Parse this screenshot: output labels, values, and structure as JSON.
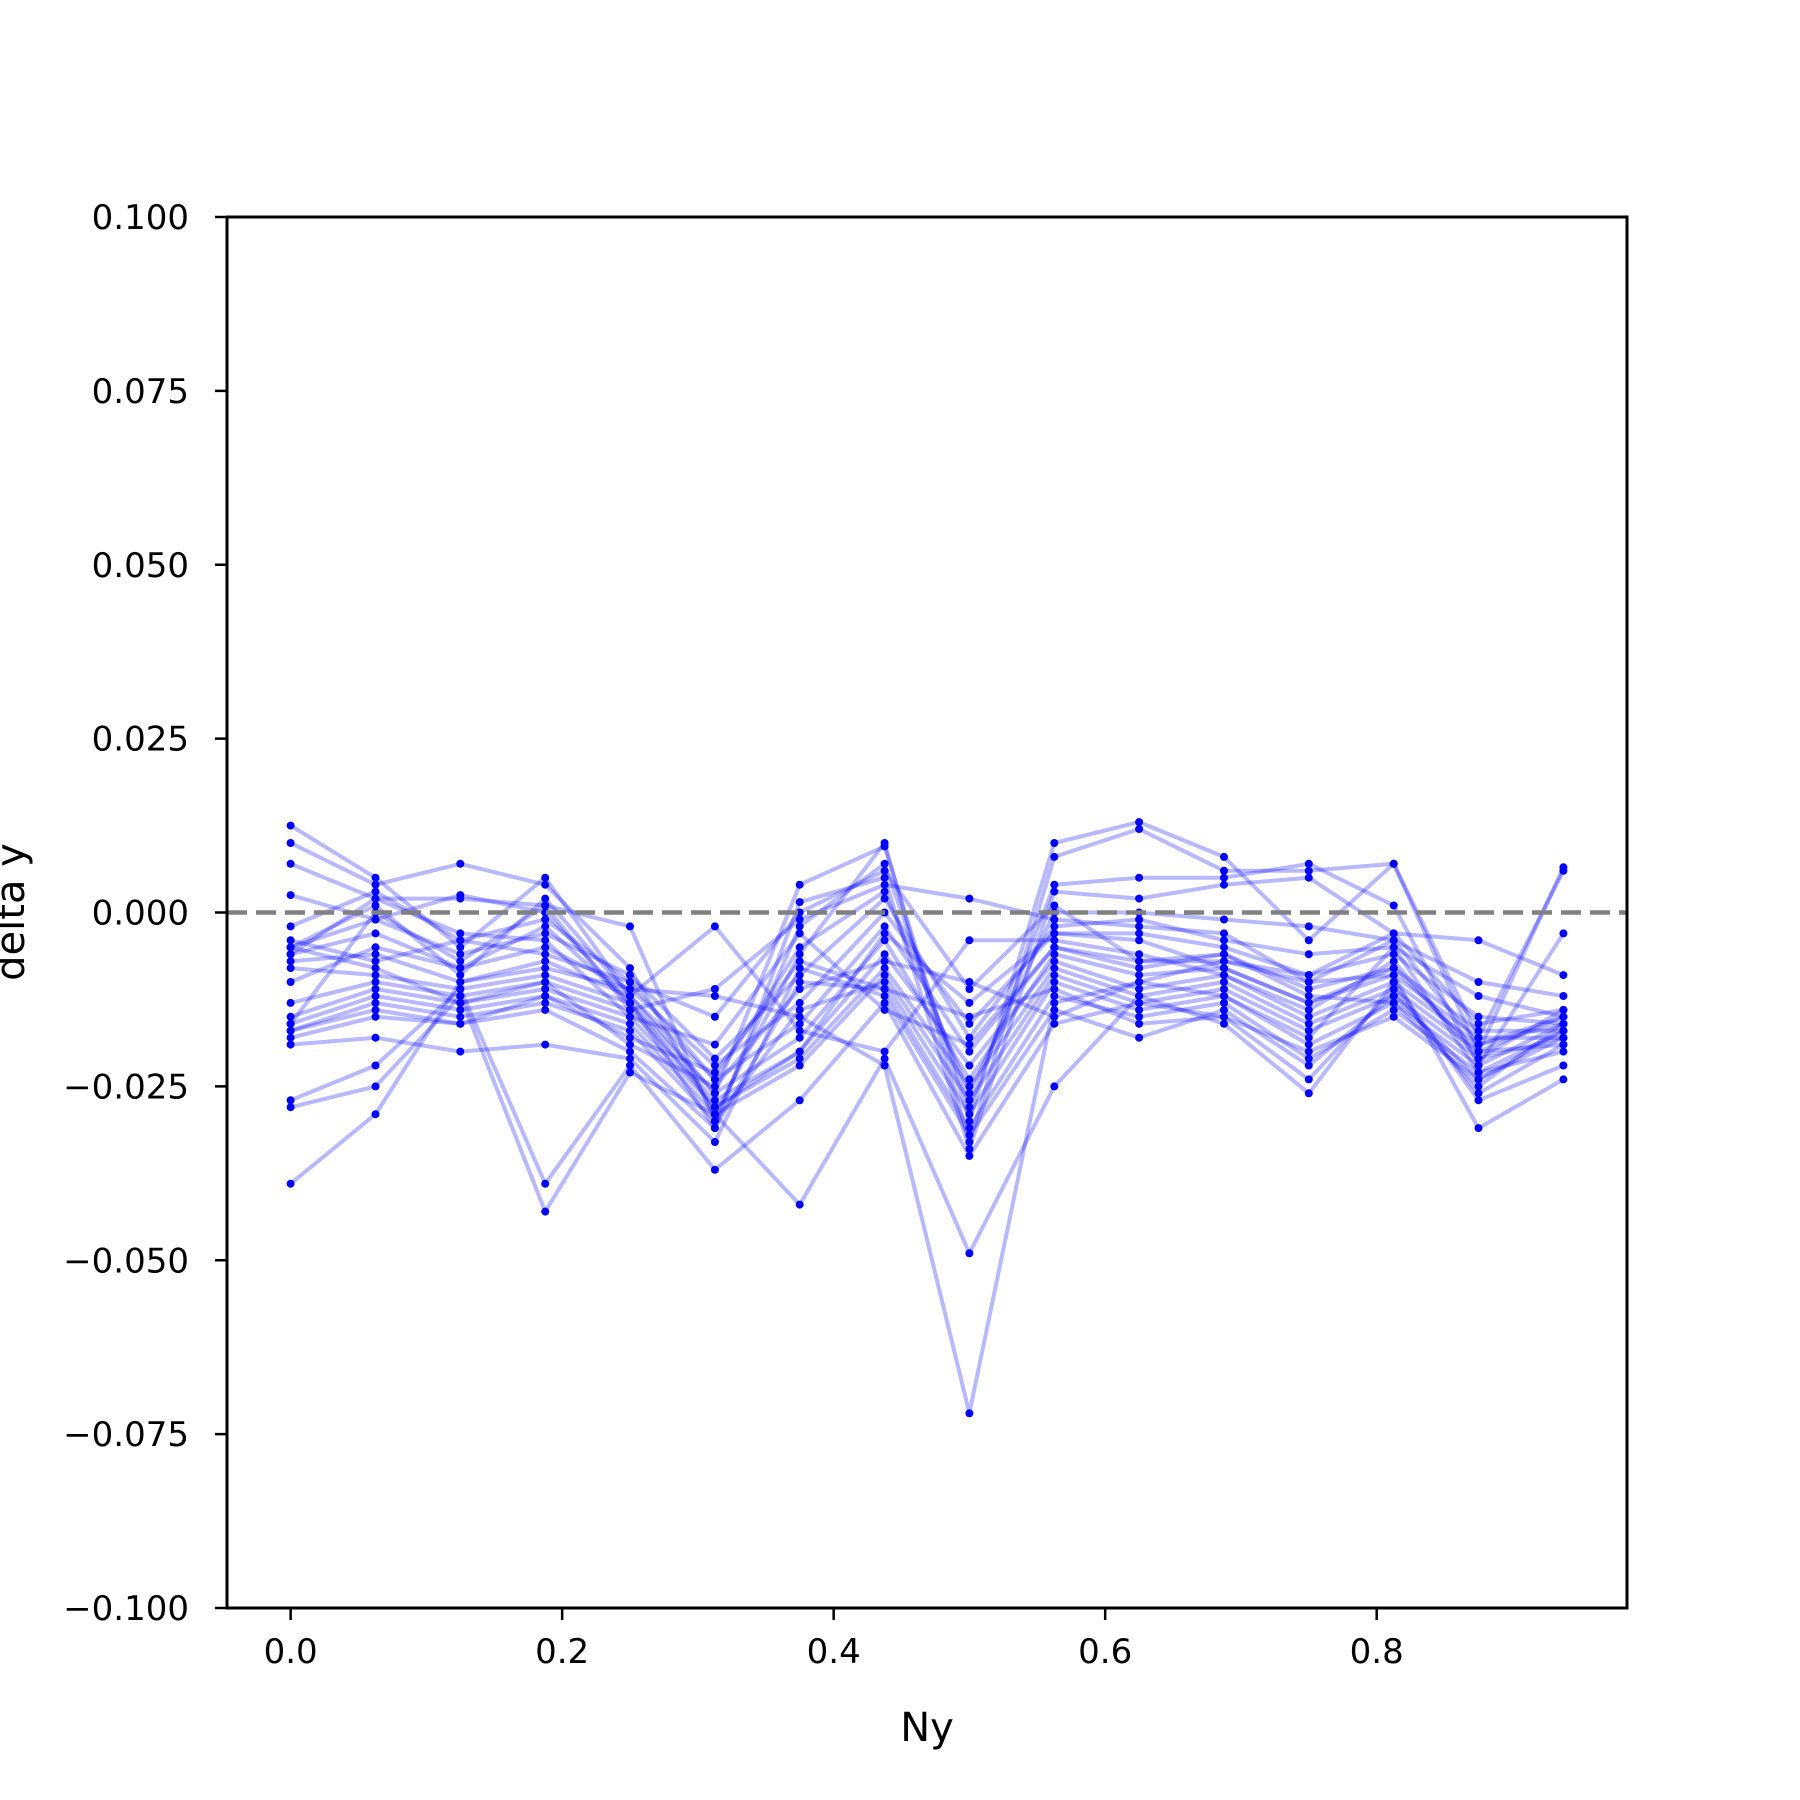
{
  "chart_data": {
    "type": "line",
    "xlabel": "Ny",
    "ylabel": "delta y",
    "xlim": [
      -0.046875,
      0.984375
    ],
    "ylim": [
      -0.1,
      0.1
    ],
    "xticks": [
      0.0,
      0.2,
      0.4,
      0.6,
      0.8
    ],
    "xtick_labels": [
      "0.0",
      "0.2",
      "0.4",
      "0.6",
      "0.8"
    ],
    "yticks": [
      -0.1,
      -0.075,
      -0.05,
      -0.025,
      0.0,
      0.025,
      0.05,
      0.075,
      0.1
    ],
    "ytick_labels": [
      "−0.100",
      "−0.075",
      "−0.050",
      "−0.025",
      "0.000",
      "0.025",
      "0.050",
      "0.075",
      "0.100"
    ],
    "reference_line": {
      "y": 0.0,
      "style": "dashed",
      "color": "#808080"
    },
    "series_color": "#0000ff",
    "line_alpha": 0.28,
    "grid": false,
    "x": [
      0.0,
      0.0625,
      0.125,
      0.1875,
      0.25,
      0.3125,
      0.375,
      0.4375,
      0.5,
      0.5625,
      0.625,
      0.6875,
      0.75,
      0.8125,
      0.875,
      0.9375
    ],
    "series": [
      {
        "values": [
          0.0125,
          0.005,
          -0.005,
          0.005,
          -0.012,
          -0.026,
          0.004,
          0.0095,
          -0.03,
          0.01,
          0.013,
          0.008,
          -0.004,
          0.007,
          -0.018,
          0.006
        ]
      },
      {
        "values": [
          0.01,
          0.004,
          0.007,
          0.004,
          -0.008,
          -0.029,
          -0.006,
          0.01,
          -0.033,
          0.008,
          0.012,
          0.006,
          0.006,
          0.007,
          -0.02,
          0.0065
        ]
      },
      {
        "values": [
          0.007,
          0.002,
          0.002,
          0.001,
          -0.002,
          -0.03,
          -0.002,
          0.007,
          -0.028,
          0.004,
          0.005,
          0.005,
          0.007,
          0.001,
          -0.022,
          -0.003
        ]
      },
      {
        "values": [
          0.0025,
          -0.001,
          0.0025,
          0.0,
          -0.013,
          -0.031,
          0.0015,
          0.005,
          -0.034,
          0.003,
          0.002,
          0.004,
          0.005,
          -0.003,
          -0.004,
          -0.009
        ]
      },
      {
        "values": [
          -0.002,
          0.003,
          -0.004,
          -0.001,
          -0.01,
          -0.024,
          -0.005,
          0.003,
          -0.026,
          0.0,
          0.0,
          -0.001,
          -0.002,
          -0.004,
          -0.01,
          -0.012
        ]
      },
      {
        "values": [
          -0.005,
          -0.001,
          -0.006,
          -0.003,
          -0.009,
          -0.021,
          -0.009,
          0.002,
          -0.018,
          -0.002,
          -0.001,
          -0.004,
          -0.006,
          -0.005,
          -0.012,
          -0.015
        ]
      },
      {
        "values": [
          -0.006,
          -0.003,
          -0.008,
          -0.005,
          -0.011,
          -0.022,
          -0.013,
          0.0,
          -0.016,
          -0.003,
          -0.003,
          -0.005,
          -0.009,
          -0.006,
          -0.015,
          -0.016
        ]
      },
      {
        "values": [
          -0.007,
          -0.006,
          -0.01,
          -0.007,
          -0.012,
          -0.024,
          -0.016,
          -0.002,
          -0.02,
          -0.005,
          -0.007,
          -0.006,
          -0.011,
          -0.008,
          -0.017,
          -0.017
        ]
      },
      {
        "values": [
          -0.008,
          -0.009,
          -0.011,
          -0.009,
          -0.013,
          -0.026,
          -0.018,
          -0.004,
          -0.024,
          -0.006,
          -0.009,
          -0.008,
          -0.013,
          -0.009,
          -0.018,
          -0.018
        ]
      },
      {
        "values": [
          -0.013,
          -0.01,
          -0.012,
          -0.01,
          -0.014,
          -0.027,
          -0.02,
          -0.006,
          -0.022,
          -0.007,
          -0.011,
          -0.009,
          -0.015,
          -0.01,
          -0.019,
          -0.016
        ]
      },
      {
        "values": [
          -0.015,
          -0.011,
          -0.013,
          -0.011,
          -0.015,
          -0.028,
          -0.021,
          -0.008,
          -0.025,
          -0.008,
          -0.012,
          -0.01,
          -0.016,
          -0.011,
          -0.02,
          -0.015
        ]
      },
      {
        "values": [
          -0.016,
          -0.012,
          -0.014,
          -0.012,
          -0.016,
          -0.029,
          -0.022,
          -0.009,
          -0.027,
          -0.009,
          -0.013,
          -0.011,
          -0.017,
          -0.012,
          -0.021,
          -0.014
        ]
      },
      {
        "values": [
          -0.017,
          -0.013,
          -0.015,
          -0.013,
          -0.017,
          -0.03,
          -0.014,
          -0.01,
          -0.029,
          -0.01,
          -0.014,
          -0.012,
          -0.019,
          -0.013,
          -0.022,
          -0.016
        ]
      },
      {
        "values": [
          -0.018,
          -0.015,
          -0.016,
          -0.014,
          -0.02,
          -0.031,
          -0.01,
          -0.011,
          -0.031,
          -0.012,
          -0.015,
          -0.013,
          -0.021,
          -0.014,
          -0.023,
          -0.017
        ]
      },
      {
        "values": [
          -0.019,
          -0.018,
          -0.02,
          -0.019,
          -0.021,
          -0.033,
          -0.008,
          -0.012,
          -0.032,
          -0.014,
          -0.018,
          -0.014,
          -0.022,
          -0.012,
          -0.024,
          -0.018
        ]
      },
      {
        "values": [
          -0.027,
          -0.022,
          -0.011,
          -0.039,
          -0.022,
          -0.037,
          -0.027,
          -0.013,
          -0.035,
          -0.016,
          -0.013,
          -0.015,
          -0.024,
          -0.011,
          -0.026,
          -0.019
        ]
      },
      {
        "values": [
          -0.028,
          -0.025,
          -0.012,
          -0.043,
          -0.023,
          -0.029,
          -0.042,
          -0.021,
          -0.049,
          -0.025,
          -0.012,
          -0.016,
          -0.026,
          -0.01,
          -0.027,
          -0.022
        ]
      },
      {
        "values": [
          -0.039,
          -0.029,
          -0.01,
          -0.008,
          -0.011,
          -0.012,
          -0.015,
          -0.022,
          -0.072,
          -0.013,
          -0.01,
          -0.007,
          -0.01,
          -0.009,
          -0.031,
          -0.024
        ]
      },
      {
        "values": [
          -0.005,
          0.001,
          -0.009,
          0.002,
          -0.012,
          -0.002,
          -0.017,
          -0.02,
          -0.004,
          -0.004,
          -0.006,
          -0.009,
          -0.014,
          -0.007,
          -0.021,
          -0.018
        ]
      },
      {
        "values": [
          -0.016,
          0.0,
          -0.007,
          0.001,
          -0.014,
          -0.011,
          -0.001,
          0.004,
          0.002,
          -0.001,
          -0.002,
          -0.003,
          -0.01,
          -0.004,
          -0.019,
          -0.015
        ]
      },
      {
        "values": [
          -0.004,
          -0.007,
          -0.004,
          -0.006,
          -0.01,
          -0.015,
          0.0,
          0.006,
          -0.011,
          0.001,
          -0.007,
          -0.007,
          -0.009,
          -0.003,
          -0.016,
          -0.014
        ]
      },
      {
        "values": [
          -0.006,
          0.002,
          -0.003,
          -0.004,
          -0.015,
          -0.019,
          -0.003,
          -0.014,
          -0.019,
          -0.005,
          -0.008,
          -0.006,
          -0.012,
          -0.013,
          -0.025,
          -0.016
        ]
      },
      {
        "values": [
          -0.017,
          -0.014,
          -0.016,
          -0.012,
          -0.018,
          -0.023,
          -0.007,
          -0.011,
          -0.015,
          -0.011,
          -0.016,
          -0.015,
          -0.02,
          -0.015,
          -0.024,
          -0.017
        ]
      },
      {
        "values": [
          -0.005,
          -0.008,
          -0.013,
          -0.01,
          -0.019,
          -0.025,
          -0.011,
          -0.007,
          -0.01,
          -0.015,
          -0.01,
          -0.012,
          -0.018,
          -0.005,
          -0.023,
          -0.02
        ]
      },
      {
        "values": [
          -0.01,
          -0.005,
          -0.008,
          -0.002,
          -0.013,
          -0.028,
          -0.02,
          -0.003,
          -0.013,
          -0.003,
          -0.004,
          -0.008,
          -0.013,
          -0.008,
          -0.02,
          -0.019
        ]
      }
    ]
  }
}
